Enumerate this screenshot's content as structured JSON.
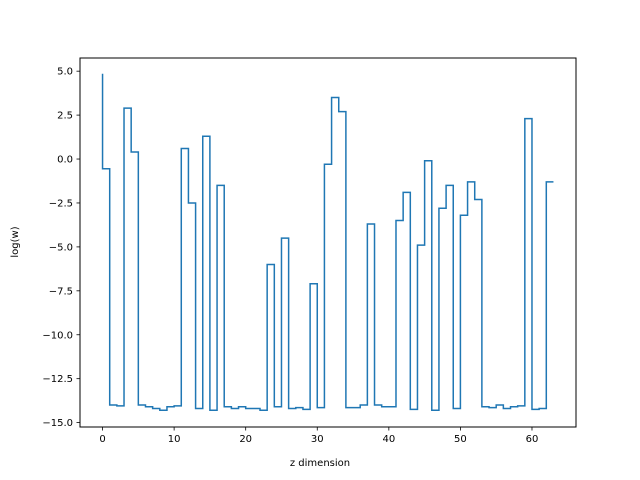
{
  "chart_data": {
    "type": "line",
    "drawstyle": "steps",
    "title": "",
    "xlabel": "z dimension",
    "ylabel": "log(w)",
    "xlim": [
      -3.15,
      66.15
    ],
    "ylim": [
      -15.25,
      5.75
    ],
    "xticks": [
      0,
      10,
      20,
      30,
      40,
      50,
      60
    ],
    "xtick_labels": [
      "0",
      "10",
      "20",
      "30",
      "40",
      "50",
      "60"
    ],
    "yticks": [
      5.0,
      2.5,
      0.0,
      -2.5,
      -5.0,
      -7.5,
      -10.0,
      -12.5,
      -15.0
    ],
    "ytick_labels": [
      "5.0",
      "2.5",
      "0.0",
      "−2.5",
      "−5.0",
      "−7.5",
      "−10.0",
      "−12.5",
      "−15.0"
    ],
    "grid": false,
    "legend": false,
    "series": [
      {
        "color": "#1f77b4",
        "x": [
          0,
          1,
          2,
          3,
          4,
          5,
          6,
          7,
          8,
          9,
          10,
          11,
          12,
          13,
          14,
          15,
          16,
          17,
          18,
          19,
          20,
          21,
          22,
          23,
          24,
          25,
          26,
          27,
          28,
          29,
          30,
          31,
          32,
          33,
          34,
          35,
          36,
          37,
          38,
          39,
          40,
          41,
          42,
          43,
          44,
          45,
          46,
          47,
          48,
          49,
          50,
          51,
          52,
          53,
          54,
          55,
          56,
          57,
          58,
          59,
          60,
          61,
          62,
          63
        ],
        "values": [
          4.85,
          -0.55,
          -14.0,
          -14.05,
          2.9,
          0.4,
          -14.0,
          -14.1,
          -14.2,
          -14.3,
          -14.1,
          -14.05,
          0.6,
          -2.5,
          -14.2,
          1.3,
          -14.3,
          -1.5,
          -14.1,
          -14.2,
          -14.1,
          -14.2,
          -14.2,
          -14.3,
          -6.0,
          -14.1,
          -4.5,
          -14.2,
          -14.15,
          -14.25,
          -7.1,
          -14.15,
          -0.3,
          3.5,
          2.7,
          -14.15,
          -14.15,
          -14.0,
          -3.7,
          -14.0,
          -14.1,
          -14.1,
          -3.5,
          -1.9,
          -14.25,
          -4.9,
          -0.1,
          -14.3,
          -2.8,
          -1.5,
          -14.2,
          -3.2,
          -1.3,
          -2.3,
          -14.1,
          -14.15,
          -14.0,
          -14.2,
          -14.1,
          -14.05,
          2.3,
          -14.25,
          -14.2,
          -1.3
        ]
      }
    ]
  }
}
